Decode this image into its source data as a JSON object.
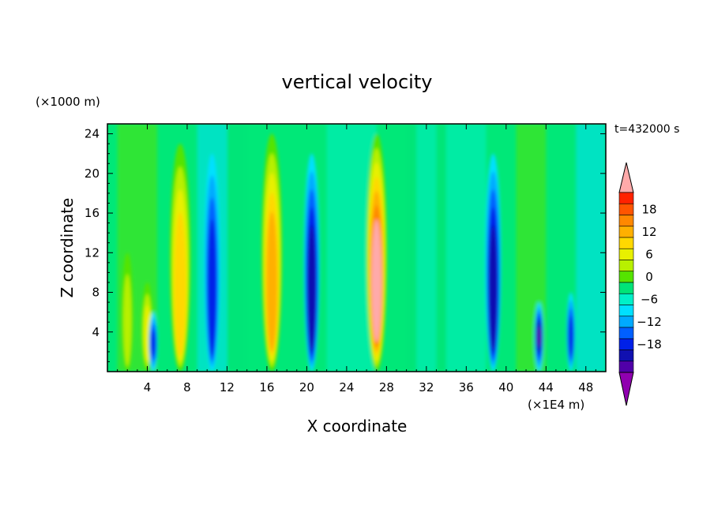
{
  "chart_data": {
    "type": "heatmap",
    "title": "vertical velocity",
    "xlabel": "X coordinate",
    "ylabel": "Z coordinate",
    "x_unit": "(×1E4 m)",
    "y_unit": "(×1000 m)",
    "time_label": "t=432000 s",
    "xlim": [
      0,
      50
    ],
    "ylim": [
      0,
      25
    ],
    "x_ticks": [
      4,
      8,
      12,
      16,
      20,
      24,
      28,
      32,
      36,
      40,
      44,
      48
    ],
    "y_ticks": [
      4,
      8,
      12,
      16,
      20,
      24
    ],
    "colorbar": {
      "levels": [
        -21,
        -18,
        -15,
        -12,
        -9,
        -6,
        -3,
        0,
        3,
        6,
        9,
        12,
        15,
        18,
        21
      ],
      "labels": [
        18,
        12,
        6,
        0,
        -6,
        -12,
        -18
      ],
      "colors_top_to_bottom": [
        "#ffaaaa",
        "#ff2200",
        "#ff5500",
        "#ff8800",
        "#ffb000",
        "#ffd800",
        "#e8f000",
        "#b8f000",
        "#55e400",
        "#00e478",
        "#00f0c8",
        "#00e0ff",
        "#00aaff",
        "#0060ff",
        "#0020e8",
        "#1010b0",
        "#5000a8",
        "#9000b0"
      ]
    },
    "features": [
      {
        "x": 2.0,
        "zmax": 12,
        "value": 8,
        "kind": "updraft"
      },
      {
        "x": 4.0,
        "zmax": 9,
        "value": 10,
        "kind": "updraft"
      },
      {
        "x": 4.6,
        "zmax": 6,
        "value": -12,
        "kind": "downdraft"
      },
      {
        "x": 7.3,
        "zmax": 23,
        "value": 14,
        "kind": "updraft"
      },
      {
        "x": 10.5,
        "zmax": 22,
        "value": -14,
        "kind": "downdraft"
      },
      {
        "x": 16.5,
        "zmax": 24,
        "value": 15,
        "kind": "updraft"
      },
      {
        "x": 20.5,
        "zmax": 22,
        "value": -15,
        "kind": "downdraft"
      },
      {
        "x": 27.0,
        "zmax": 24,
        "value": 21,
        "kind": "updraft"
      },
      {
        "x": 38.7,
        "zmax": 22,
        "value": -17,
        "kind": "downdraft"
      },
      {
        "x": 43.3,
        "zmax": 7,
        "value": -18,
        "kind": "downdraft"
      },
      {
        "x": 46.5,
        "zmax": 8,
        "value": -12,
        "kind": "downdraft"
      }
    ]
  }
}
